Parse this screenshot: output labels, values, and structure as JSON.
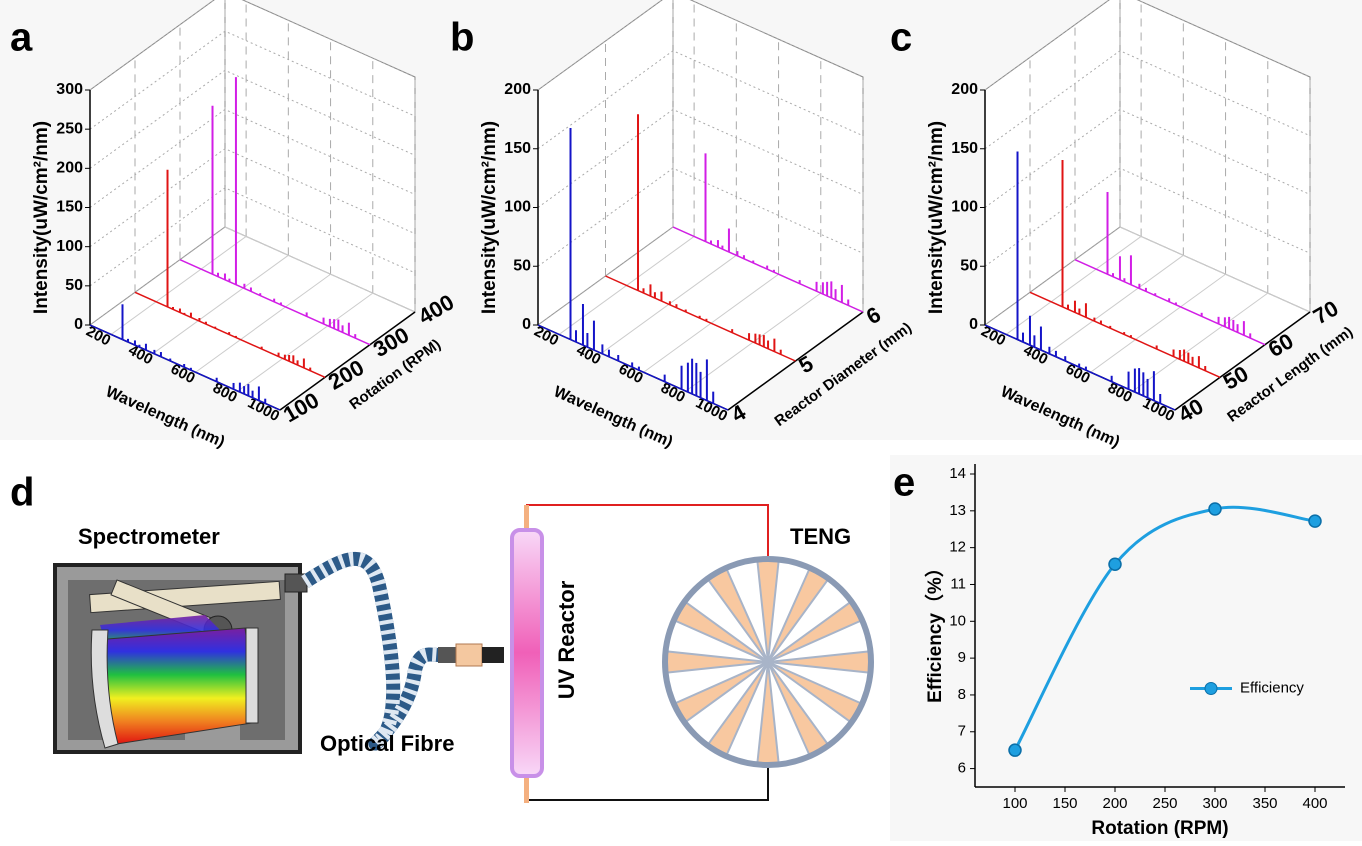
{
  "chart_data": [
    {
      "type": "waterfall3d",
      "panel_label": "a",
      "xlabel": "Wavelength (nm)",
      "ylabel": "Rotation (RPM)",
      "zlabel": "Intensity(uW/cm²/nm)",
      "xlim": [
        100,
        1000
      ],
      "xticks": [
        200,
        400,
        600,
        800,
        1000
      ],
      "ylim": [
        100,
        400
      ],
      "yticks": [
        100,
        200,
        300,
        400
      ],
      "zlim": [
        0,
        300
      ],
      "zticks": [
        0,
        50,
        100,
        150,
        200,
        250,
        300
      ],
      "series": [
        {
          "color": "#1414c8",
          "depth": 100,
          "x": [
            254,
            280,
            313,
            334,
            365,
            405,
            436,
            480,
            546,
            578,
            700,
            780,
            810,
            830,
            850,
            870,
            900,
            930
          ],
          "values": [
            45,
            4,
            6,
            3,
            8,
            5,
            6,
            3,
            4,
            3,
            5,
            8,
            12,
            10,
            15,
            9,
            18,
            6
          ]
        },
        {
          "color": "#e01414",
          "depth": 200,
          "x": [
            254,
            280,
            313,
            334,
            365,
            405,
            436,
            480,
            546,
            578,
            700,
            780,
            810,
            830,
            850,
            870,
            900,
            930
          ],
          "values": [
            175,
            3,
            5,
            2,
            6,
            4,
            3,
            2,
            3,
            2,
            3,
            5,
            6,
            8,
            10,
            6,
            12,
            4
          ]
        },
        {
          "color": "#d21ee6",
          "depth": 300,
          "x": [
            254,
            280,
            313,
            334,
            365,
            405,
            436,
            480,
            546,
            578,
            700,
            780,
            810,
            830,
            850,
            870,
            900,
            930
          ],
          "values": [
            215,
            5,
            8,
            4,
            265,
            6,
            5,
            3,
            4,
            3,
            5,
            8,
            10,
            12,
            14,
            9,
            16,
            5
          ]
        }
      ]
    },
    {
      "type": "waterfall3d",
      "panel_label": "b",
      "xlabel": "Wavelength (nm)",
      "ylabel": "Reactor Diameter (mm)",
      "zlabel": "Intensity(uW/cm²/nm)",
      "xlim": [
        100,
        1000
      ],
      "xticks": [
        200,
        400,
        600,
        800,
        1000
      ],
      "ylim": [
        4,
        6
      ],
      "yticks": [
        4,
        5,
        6
      ],
      "zlim": [
        0,
        200
      ],
      "zticks": [
        0,
        50,
        100,
        150,
        200
      ],
      "series": [
        {
          "color": "#1414c8",
          "depth": 4,
          "x": [
            254,
            280,
            313,
            334,
            365,
            405,
            436,
            480,
            546,
            578,
            700,
            780,
            810,
            830,
            850,
            870,
            900,
            930
          ],
          "values": [
            180,
            10,
            35,
            12,
            25,
            8,
            6,
            5,
            4,
            3,
            6,
            20,
            25,
            30,
            28,
            22,
            35,
            10
          ]
        },
        {
          "color": "#e01414",
          "depth": 5,
          "x": [
            254,
            280,
            313,
            334,
            365,
            405,
            436,
            480,
            546,
            578,
            700,
            780,
            810,
            830,
            850,
            870,
            900,
            930
          ],
          "values": [
            150,
            4,
            10,
            5,
            8,
            3,
            3,
            2,
            2,
            2,
            3,
            6,
            8,
            9,
            10,
            7,
            11,
            4
          ]
        },
        {
          "color": "#d21ee6",
          "depth": 6,
          "x": [
            254,
            280,
            313,
            334,
            365,
            405,
            436,
            480,
            546,
            578,
            700,
            780,
            810,
            830,
            850,
            870,
            900,
            930
          ],
          "values": [
            75,
            3,
            6,
            3,
            20,
            4,
            3,
            2,
            3,
            2,
            3,
            8,
            10,
            12,
            14,
            9,
            15,
            5
          ]
        }
      ]
    },
    {
      "type": "waterfall3d",
      "panel_label": "c",
      "xlabel": "Wavelength (nm)",
      "ylabel": "Reactor Length (mm)",
      "zlabel": "Intensity(uW/cm²/nm)",
      "xlim": [
        100,
        1000
      ],
      "xticks": [
        200,
        400,
        600,
        800,
        1000
      ],
      "ylim": [
        40,
        70
      ],
      "yticks": [
        40,
        50,
        60,
        70
      ],
      "zlim": [
        0,
        200
      ],
      "zticks": [
        0,
        50,
        100,
        150,
        200
      ],
      "series": [
        {
          "color": "#1414c8",
          "depth": 40,
          "x": [
            254,
            280,
            313,
            334,
            365,
            405,
            436,
            480,
            546,
            578,
            700,
            780,
            810,
            830,
            850,
            870,
            900,
            930
          ],
          "values": [
            160,
            8,
            25,
            10,
            20,
            6,
            5,
            4,
            3,
            3,
            5,
            15,
            20,
            22,
            20,
            16,
            25,
            8
          ]
        },
        {
          "color": "#e01414",
          "depth": 50,
          "x": [
            254,
            280,
            313,
            334,
            365,
            405,
            436,
            480,
            546,
            578,
            700,
            780,
            810,
            830,
            850,
            870,
            900,
            930
          ],
          "values": [
            125,
            4,
            10,
            5,
            12,
            3,
            3,
            2,
            2,
            2,
            3,
            6,
            8,
            10,
            9,
            7,
            10,
            4
          ]
        },
        {
          "color": "#d21ee6",
          "depth": 60,
          "x": [
            254,
            280,
            313,
            334,
            365,
            405,
            436,
            480,
            546,
            578,
            700,
            780,
            810,
            830,
            850,
            870,
            900,
            930
          ],
          "values": [
            70,
            3,
            20,
            3,
            25,
            4,
            3,
            2,
            3,
            2,
            3,
            6,
            8,
            10,
            9,
            7,
            12,
            4
          ]
        }
      ]
    },
    {
      "type": "line",
      "panel_label": "e",
      "xlabel": "Rotation (RPM)",
      "ylabel": "Efficiency（%）",
      "x": [
        100,
        200,
        300,
        400
      ],
      "series": [
        {
          "name": "Efficiency",
          "color": "#1e9fe0",
          "values": [
            6.5,
            11.55,
            13.05,
            12.72
          ]
        }
      ],
      "xlim": [
        60,
        430
      ],
      "xticks": [
        100,
        150,
        200,
        250,
        300,
        350,
        400
      ],
      "ylim": [
        5.5,
        14
      ],
      "yticks": [
        6,
        7,
        8,
        9,
        10,
        11,
        12,
        13,
        14
      ],
      "legend": "right"
    }
  ],
  "diagram": {
    "panel_label": "d",
    "spectrometer": "Spectrometer",
    "fibre": "Optical Fibre",
    "reactor": "UV Reactor",
    "teng": "TENG"
  }
}
